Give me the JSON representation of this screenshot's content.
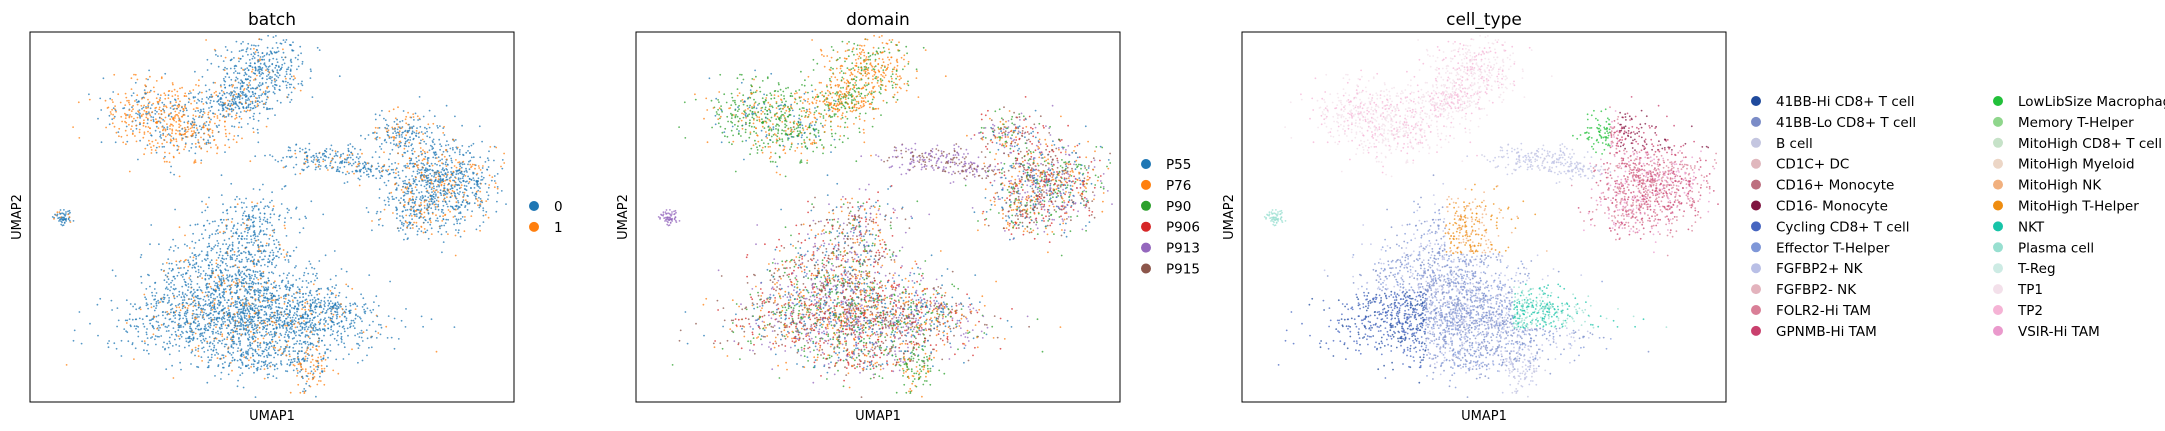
{
  "chart_data": [
    {
      "type": "scatter",
      "title": "batch",
      "xlabel": "UMAP1",
      "ylabel": "UMAP2",
      "legend_position": "right",
      "legend_entries": [
        {
          "label": "0",
          "color": "#1f77b4"
        },
        {
          "label": "1",
          "color": "#ff7f0e"
        }
      ]
    },
    {
      "type": "scatter",
      "title": "domain",
      "xlabel": "UMAP1",
      "ylabel": "UMAP2",
      "legend_position": "right",
      "legend_entries": [
        {
          "label": "P55",
          "color": "#1f77b4"
        },
        {
          "label": "P76",
          "color": "#ff7f0e"
        },
        {
          "label": "P90",
          "color": "#2ca02c"
        },
        {
          "label": "P906",
          "color": "#d62728"
        },
        {
          "label": "P913",
          "color": "#9467bd"
        },
        {
          "label": "P915",
          "color": "#8c564b"
        }
      ]
    },
    {
      "type": "scatter",
      "title": "cell_type",
      "xlabel": "UMAP1",
      "ylabel": "UMAP2",
      "legend_position": "right",
      "legend_columns": 2,
      "legend_entries": [
        {
          "label": "41BB-Hi CD8+ T cell",
          "color": "#1f4a9c"
        },
        {
          "label": "41BB-Lo CD8+ T cell",
          "color": "#7b8cc7"
        },
        {
          "label": "B cell",
          "color": "#c4c6e0"
        },
        {
          "label": "CD1C+ DC",
          "color": "#e0b7bd"
        },
        {
          "label": "CD16+ Monocyte",
          "color": "#bd6f7f"
        },
        {
          "label": "CD16- Monocyte",
          "color": "#7f1440"
        },
        {
          "label": "Cycling CD8+ T cell",
          "color": "#4665c0"
        },
        {
          "label": "Effector T-Helper",
          "color": "#7f97d8"
        },
        {
          "label": "FGFBP2+ NK",
          "color": "#b9bfe6"
        },
        {
          "label": "FGFBP2- NK",
          "color": "#e3b3bd"
        },
        {
          "label": "FOLR2-Hi TAM",
          "color": "#d97f97"
        },
        {
          "label": "GPNMB-Hi TAM",
          "color": "#c9406d"
        },
        {
          "label": "LowLibSize Macrophage",
          "color": "#22c03a"
        },
        {
          "label": "Memory T-Helper",
          "color": "#8fd68c"
        },
        {
          "label": "MitoHigh CD8+ T cell",
          "color": "#c6e2c8"
        },
        {
          "label": "MitoHigh Myeloid",
          "color": "#ecd6c6"
        },
        {
          "label": "MitoHigh NK",
          "color": "#f1b07e"
        },
        {
          "label": "MitoHigh T-Helper",
          "color": "#ee8c0f"
        },
        {
          "label": "NKT",
          "color": "#17c4a8"
        },
        {
          "label": "Plasma cell",
          "color": "#98dfd0"
        },
        {
          "label": "T-Reg",
          "color": "#cdebe4"
        },
        {
          "label": "TP1",
          "color": "#f3e0ea"
        },
        {
          "label": "TP2",
          "color": "#f5b3d5"
        },
        {
          "label": "VSIR-Hi TAM",
          "color": "#ea99cc"
        }
      ]
    }
  ]
}
